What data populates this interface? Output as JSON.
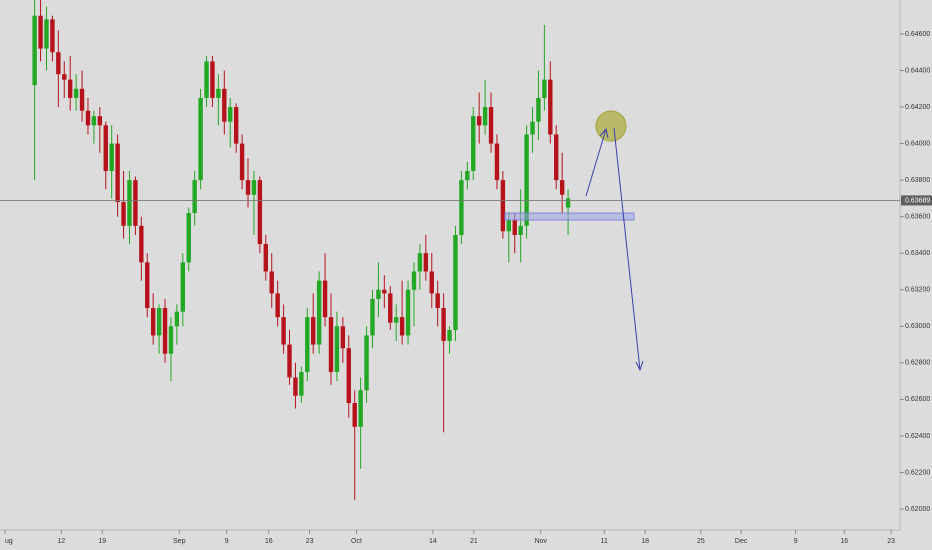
{
  "chart_data": {
    "type": "candlestick",
    "up_color": "#22a822",
    "down_color": "#b5121b",
    "last_price": 0.63689,
    "xlim": [
      -5,
      146
    ],
    "xticks": [
      {
        "value": -5,
        "label": "ug"
      },
      {
        "value": 4.5,
        "label": "12"
      },
      {
        "value": 11.4,
        "label": "19"
      },
      {
        "value": 24.4,
        "label": "Sep"
      },
      {
        "value": 32.4,
        "label": "9"
      },
      {
        "value": 39.5,
        "label": "16"
      },
      {
        "value": 46.4,
        "label": "23"
      },
      {
        "value": 54.3,
        "label": "Oct"
      },
      {
        "value": 67.2,
        "label": "14"
      },
      {
        "value": 74.1,
        "label": "21"
      },
      {
        "value": 85.4,
        "label": "Nov"
      },
      {
        "value": 96.1,
        "label": "11"
      },
      {
        "value": 103,
        "label": "18"
      },
      {
        "value": 112.4,
        "label": "25"
      },
      {
        "value": 119.2,
        "label": "Dec"
      },
      {
        "value": 128.4,
        "label": "9"
      },
      {
        "value": 136.6,
        "label": "16"
      },
      {
        "value": 144.5,
        "label": "23"
      }
    ],
    "ylim": [
      0.61885,
      0.64786
    ],
    "yticks": [
      {
        "value": 0.62,
        "label": "0.62000"
      },
      {
        "value": 0.622,
        "label": "0.62200"
      },
      {
        "value": 0.624,
        "label": "0.62400"
      },
      {
        "value": 0.626,
        "label": "0.62600"
      },
      {
        "value": 0.628,
        "label": "0.62800"
      },
      {
        "value": 0.63,
        "label": "0.63000"
      },
      {
        "value": 0.632,
        "label": "0.63200"
      },
      {
        "value": 0.634,
        "label": "0.63400"
      },
      {
        "value": 0.636,
        "label": "0.63600"
      },
      {
        "value": 0.638,
        "label": "0.63800"
      },
      {
        "value": 0.64,
        "label": "0.64000"
      },
      {
        "value": 0.642,
        "label": "0.64200"
      },
      {
        "value": 0.644,
        "label": "0.64400"
      },
      {
        "value": 0.646,
        "label": "0.64600"
      }
    ],
    "ohlc": [
      [
        0.6432,
        0.648,
        0.638,
        0.647
      ],
      [
        0.647,
        0.6482,
        0.6445,
        0.6452
      ],
      [
        0.6452,
        0.6475,
        0.644,
        0.6468
      ],
      [
        0.6468,
        0.647,
        0.6445,
        0.645
      ],
      [
        0.645,
        0.6462,
        0.642,
        0.6438
      ],
      [
        0.6438,
        0.6445,
        0.6425,
        0.6435
      ],
      [
        0.6435,
        0.6448,
        0.6418,
        0.6425
      ],
      [
        0.6425,
        0.6438,
        0.6418,
        0.643
      ],
      [
        0.643,
        0.644,
        0.6412,
        0.6418
      ],
      [
        0.6418,
        0.6425,
        0.6405,
        0.641
      ],
      [
        0.641,
        0.6418,
        0.64,
        0.6415
      ],
      [
        0.6415,
        0.642,
        0.6395,
        0.641
      ],
      [
        0.641,
        0.6412,
        0.6375,
        0.6385
      ],
      [
        0.6385,
        0.641,
        0.637,
        0.64
      ],
      [
        0.64,
        0.6405,
        0.636,
        0.6368
      ],
      [
        0.6368,
        0.6385,
        0.6348,
        0.6355
      ],
      [
        0.6355,
        0.6385,
        0.6345,
        0.638
      ],
      [
        0.638,
        0.6382,
        0.635,
        0.6355
      ],
      [
        0.6355,
        0.636,
        0.6325,
        0.6335
      ],
      [
        0.6335,
        0.634,
        0.6305,
        0.631
      ],
      [
        0.631,
        0.6318,
        0.629,
        0.6295
      ],
      [
        0.6295,
        0.6312,
        0.6285,
        0.631
      ],
      [
        0.631,
        0.6315,
        0.628,
        0.6285
      ],
      [
        0.6285,
        0.6305,
        0.627,
        0.63
      ],
      [
        0.63,
        0.6312,
        0.629,
        0.6308
      ],
      [
        0.6308,
        0.634,
        0.63,
        0.6335
      ],
      [
        0.6335,
        0.6365,
        0.633,
        0.6362
      ],
      [
        0.6362,
        0.6385,
        0.6355,
        0.638
      ],
      [
        0.638,
        0.643,
        0.6375,
        0.6425
      ],
      [
        0.6425,
        0.6448,
        0.642,
        0.6445
      ],
      [
        0.6445,
        0.6448,
        0.642,
        0.6425
      ],
      [
        0.6425,
        0.6438,
        0.641,
        0.643
      ],
      [
        0.643,
        0.644,
        0.6405,
        0.6412
      ],
      [
        0.6412,
        0.6425,
        0.6398,
        0.642
      ],
      [
        0.642,
        0.6422,
        0.6395,
        0.64
      ],
      [
        0.64,
        0.6405,
        0.6375,
        0.638
      ],
      [
        0.638,
        0.6392,
        0.6365,
        0.6372
      ],
      [
        0.6372,
        0.6385,
        0.635,
        0.638
      ],
      [
        0.638,
        0.6382,
        0.634,
        0.6345
      ],
      [
        0.6345,
        0.635,
        0.6325,
        0.633
      ],
      [
        0.633,
        0.634,
        0.631,
        0.6318
      ],
      [
        0.6318,
        0.6325,
        0.63,
        0.6305
      ],
      [
        0.6305,
        0.6312,
        0.6285,
        0.629
      ],
      [
        0.629,
        0.6298,
        0.6268,
        0.6272
      ],
      [
        0.6272,
        0.628,
        0.6255,
        0.6262
      ],
      [
        0.6262,
        0.6278,
        0.6258,
        0.6275
      ],
      [
        0.6275,
        0.631,
        0.627,
        0.6305
      ],
      [
        0.6305,
        0.6318,
        0.6285,
        0.629
      ],
      [
        0.629,
        0.633,
        0.6285,
        0.6325
      ],
      [
        0.6325,
        0.634,
        0.63,
        0.6305
      ],
      [
        0.6305,
        0.6318,
        0.6268,
        0.6275
      ],
      [
        0.6275,
        0.6308,
        0.627,
        0.63
      ],
      [
        0.63,
        0.6305,
        0.628,
        0.6288
      ],
      [
        0.6288,
        0.6295,
        0.625,
        0.6258
      ],
      [
        0.6258,
        0.6265,
        0.6205,
        0.6245
      ],
      [
        0.6245,
        0.6272,
        0.6222,
        0.6265
      ],
      [
        0.6265,
        0.63,
        0.6258,
        0.6295
      ],
      [
        0.6295,
        0.632,
        0.6288,
        0.6315
      ],
      [
        0.6315,
        0.6335,
        0.6305,
        0.632
      ],
      [
        0.632,
        0.6328,
        0.631,
        0.6318
      ],
      [
        0.6318,
        0.6322,
        0.6298,
        0.6302
      ],
      [
        0.6302,
        0.6312,
        0.6292,
        0.6305
      ],
      [
        0.6305,
        0.6325,
        0.629,
        0.6295
      ],
      [
        0.6295,
        0.6325,
        0.629,
        0.632
      ],
      [
        0.632,
        0.6335,
        0.63,
        0.633
      ],
      [
        0.633,
        0.6345,
        0.632,
        0.634
      ],
      [
        0.634,
        0.635,
        0.6325,
        0.633
      ],
      [
        0.633,
        0.634,
        0.631,
        0.6318
      ],
      [
        0.6318,
        0.6325,
        0.63,
        0.631
      ],
      [
        0.631,
        0.6318,
        0.6242,
        0.6292
      ],
      [
        0.6292,
        0.63,
        0.6285,
        0.6298
      ],
      [
        0.6298,
        0.6355,
        0.6292,
        0.635
      ],
      [
        0.635,
        0.6385,
        0.6345,
        0.638
      ],
      [
        0.638,
        0.639,
        0.6375,
        0.6385
      ],
      [
        0.6385,
        0.642,
        0.638,
        0.6415
      ],
      [
        0.6415,
        0.6428,
        0.64,
        0.641
      ],
      [
        0.641,
        0.6435,
        0.6405,
        0.642
      ],
      [
        0.642,
        0.6428,
        0.6395,
        0.64
      ],
      [
        0.64,
        0.6405,
        0.6375,
        0.638
      ],
      [
        0.638,
        0.6385,
        0.6348,
        0.6352
      ],
      [
        0.6352,
        0.6362,
        0.6335,
        0.6358
      ],
      [
        0.6358,
        0.6362,
        0.634,
        0.635
      ],
      [
        0.635,
        0.6375,
        0.6335,
        0.6355
      ],
      [
        0.6355,
        0.641,
        0.6348,
        0.6405
      ],
      [
        0.6405,
        0.642,
        0.6395,
        0.6412
      ],
      [
        0.6412,
        0.644,
        0.6402,
        0.6425
      ],
      [
        0.6425,
        0.6465,
        0.6418,
        0.6435
      ],
      [
        0.6435,
        0.6445,
        0.64,
        0.6405
      ],
      [
        0.6405,
        0.641,
        0.6375,
        0.638
      ],
      [
        0.638,
        0.6395,
        0.6362,
        0.6372
      ],
      [
        0.6365,
        0.6375,
        0.635,
        0.637
      ]
    ]
  }
}
